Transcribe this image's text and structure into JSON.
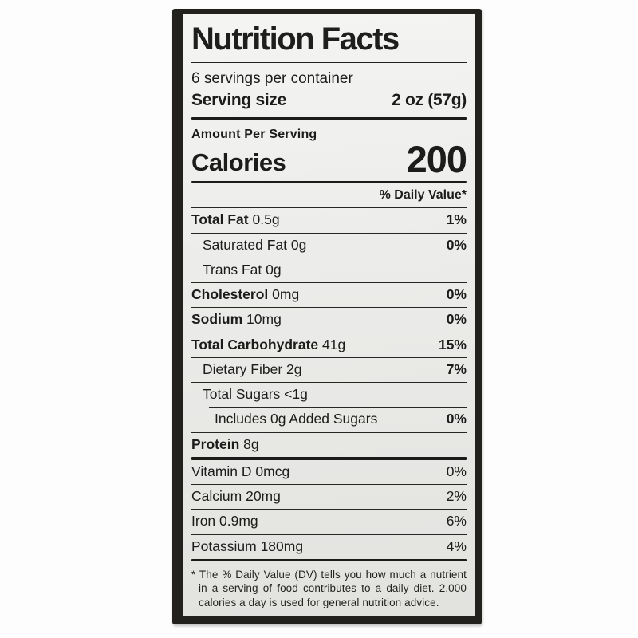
{
  "label": {
    "title": "Nutrition Facts",
    "servings_per_container": "6 servings per container",
    "serving_size_label": "Serving size",
    "serving_size_value": "2 oz (57g)",
    "amount_per_serving": "Amount Per Serving",
    "calories_label": "Calories",
    "calories_value": "200",
    "daily_value_header": "% Daily Value*",
    "nutrients": [
      {
        "name": "Total Fat",
        "amount": "0.5g",
        "dv": "1%",
        "bold": true,
        "indent": 0
      },
      {
        "name": "Saturated Fat",
        "amount": "0g",
        "dv": "0%",
        "bold": false,
        "indent": 1
      },
      {
        "name": "Trans Fat",
        "amount": "0g",
        "dv": "",
        "bold": false,
        "indent": 1
      },
      {
        "name": "Cholesterol",
        "amount": "0mg",
        "dv": "0%",
        "bold": true,
        "indent": 0
      },
      {
        "name": "Sodium",
        "amount": "10mg",
        "dv": "0%",
        "bold": true,
        "indent": 0
      },
      {
        "name": "Total Carbohydrate",
        "amount": "41g",
        "dv": "15%",
        "bold": true,
        "indent": 0
      },
      {
        "name": "Dietary Fiber",
        "amount": "2g",
        "dv": "7%",
        "bold": false,
        "indent": 1
      },
      {
        "name": "Total Sugars",
        "amount": "<1g",
        "dv": "",
        "bold": false,
        "indent": 1
      },
      {
        "name": "Includes 0g Added Sugars",
        "amount": "",
        "dv": "0%",
        "bold": false,
        "indent": 2,
        "indent_rule": true
      },
      {
        "name": "Protein",
        "amount": "8g",
        "dv": "",
        "bold": true,
        "indent": 0
      }
    ],
    "vitamins": [
      {
        "name": "Vitamin D",
        "amount": "0mcg",
        "dv": "0%"
      },
      {
        "name": "Calcium",
        "amount": "20mg",
        "dv": "2%"
      },
      {
        "name": "Iron",
        "amount": "0.9mg",
        "dv": "6%"
      },
      {
        "name": "Potassium",
        "amount": "180mg",
        "dv": "4%"
      }
    ],
    "footnote": "* The % Daily Value (DV) tells you how much a nutrient in a serving of food contributes to a daily diet. 2,000 calories a day is used for general nutrition advice."
  },
  "colors": {
    "frame": "#23211d",
    "label_background": "#ececea",
    "text": "#1c1c1a",
    "rule": "#262623"
  }
}
